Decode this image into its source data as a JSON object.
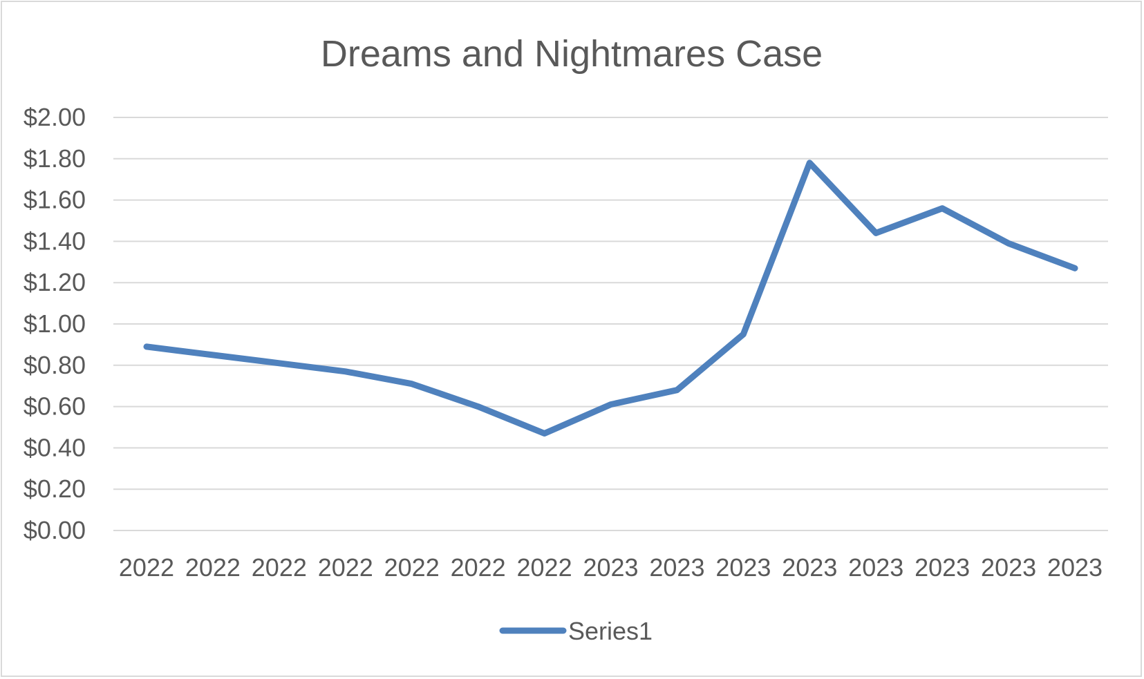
{
  "chart_data": {
    "type": "line",
    "title": "Dreams and Nightmares Case",
    "xlabel": "",
    "ylabel": "",
    "categories": [
      "2022",
      "2022",
      "2022",
      "2022",
      "2022",
      "2022",
      "2022",
      "2023",
      "2023",
      "2023",
      "2023",
      "2023",
      "2023",
      "2023",
      "2023"
    ],
    "series": [
      {
        "name": "Series1",
        "values": [
          0.89,
          0.85,
          0.81,
          0.77,
          0.71,
          0.6,
          0.47,
          0.61,
          0.68,
          0.95,
          1.78,
          1.44,
          1.56,
          1.39,
          1.27
        ],
        "color": "#4f81bd"
      }
    ],
    "ylim": [
      0,
      2.0
    ],
    "yticks": [
      "$0.00",
      "$0.20",
      "$0.40",
      "$0.60",
      "$0.80",
      "$1.00",
      "$1.20",
      "$1.40",
      "$1.60",
      "$1.80",
      "$2.00"
    ],
    "grid": true,
    "legend_position": "bottom"
  }
}
